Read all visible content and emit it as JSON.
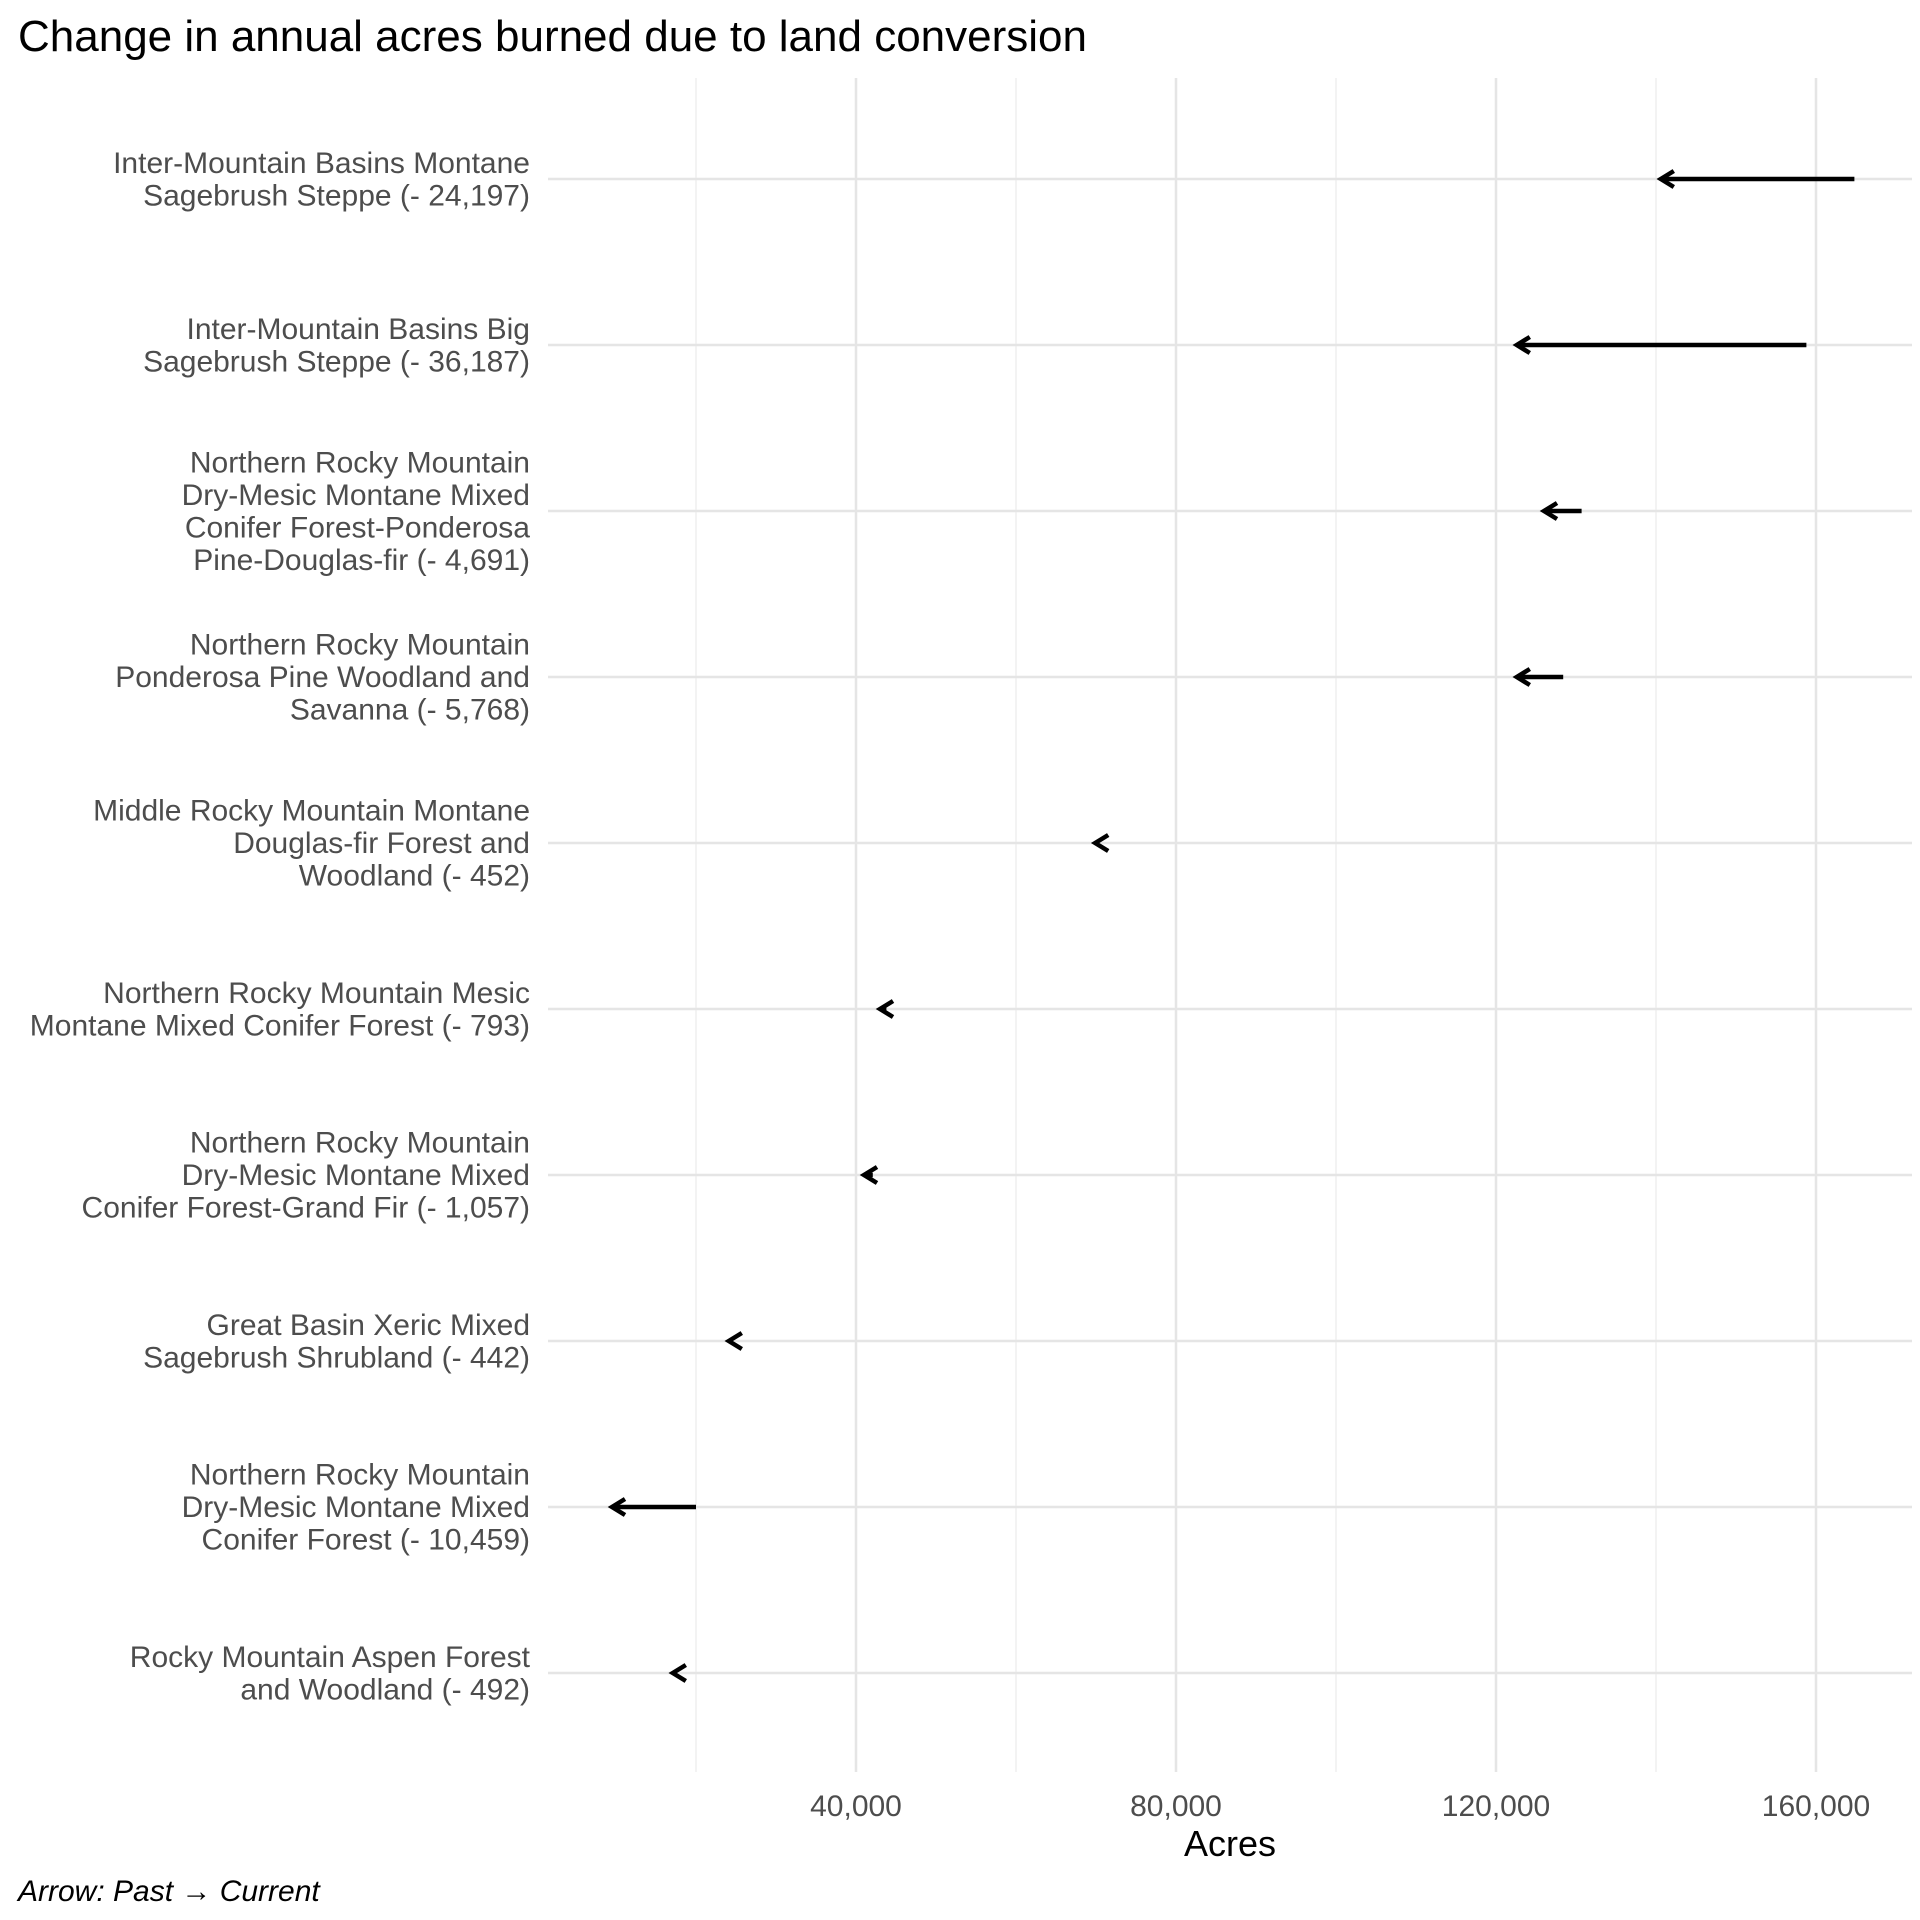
{
  "chart_data": {
    "type": "arrow",
    "title": "Change in annual acres burned due to land conversion",
    "xlabel": "Acres",
    "ylabel": "",
    "caption": "Arrow: Past → Current",
    "x_ticks": [
      40000,
      80000,
      120000,
      160000
    ],
    "x_tick_labels": [
      "40,000",
      "80,000",
      "120,000",
      "160,000"
    ],
    "xlim": [
      2000,
      172000
    ],
    "grid": true,
    "categories": [
      {
        "label": [
          "Inter-Mountain Basins Montane",
          "Sagebrush Steppe (- 24,197)"
        ],
        "past": 164800,
        "current": 140600
      },
      {
        "label": [
          "Inter-Mountain Basins Big",
          "Sagebrush Steppe (- 36,187)"
        ],
        "past": 158800,
        "current": 122600
      },
      {
        "label": [
          "Northern Rocky Mountain",
          "Dry-Mesic Montane Mixed",
          "Conifer Forest-Ponderosa",
          "Pine-Douglas-fir (- 4,691)"
        ],
        "past": 130700,
        "current": 126000
      },
      {
        "label": [
          "Northern Rocky Mountain",
          "Ponderosa Pine Woodland and",
          "Savanna (- 5,768)"
        ],
        "past": 128400,
        "current": 122600
      },
      {
        "label": [
          "Middle Rocky Mountain Montane",
          "Douglas-fir Forest and",
          "Woodland (- 452)"
        ],
        "past": 70400,
        "current": 69900
      },
      {
        "label": [
          "Northern Rocky Mountain Mesic",
          "Montane Mixed Conifer Forest (- 793)"
        ],
        "past": 43800,
        "current": 43000
      },
      {
        "label": [
          "Northern Rocky Mountain",
          "Dry-Mesic Montane Mixed",
          "Conifer Forest-Grand Fir (- 1,057)"
        ],
        "past": 42100,
        "current": 41000
      },
      {
        "label": [
          "Great Basin Xeric Mixed",
          "Sagebrush Shrubland (- 442)"
        ],
        "past": 24500,
        "current": 24100
      },
      {
        "label": [
          "Northern Rocky Mountain",
          "Dry-Mesic Montane Mixed",
          "Conifer Forest (- 10,459)"
        ],
        "past": 20000,
        "current": 9500
      },
      {
        "label": [
          "Rocky Mountain Aspen Forest",
          "and Woodland (- 492)"
        ],
        "past": 17600,
        "current": 17100
      }
    ]
  }
}
